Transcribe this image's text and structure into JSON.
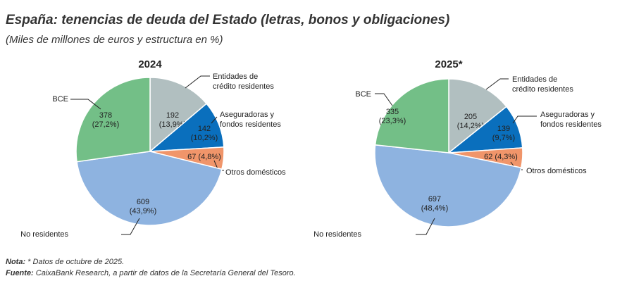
{
  "title": "España: tenencias de deuda del Estado (letras, bonos y obligaciones)",
  "subtitle": "(Miles de millones de euros y estructura en %)",
  "note_label": "Nota:",
  "note_text": " * Datos de octubre de 2025.",
  "source_label": "Fuente:",
  "source_text": " CaixaBank Research, a partir de datos de la Secretaría General del Tesoro.",
  "chart_data": [
    {
      "type": "pie",
      "title": "2024",
      "slices": [
        {
          "label": "Entidades de crédito residentes",
          "value": 192,
          "pct": "13,9%",
          "color": "#b1bfc0"
        },
        {
          "label": "Aseguradoras y fondos residentes",
          "value": 142,
          "pct": "10,2%",
          "color": "#0a6fbd"
        },
        {
          "label": "Otros domésticos",
          "value": 67,
          "pct": "4,8%",
          "color": "#f0956a"
        },
        {
          "label": "No residentes",
          "value": 609,
          "pct": "43,9%",
          "color": "#8eb3e0"
        },
        {
          "label": "BCE",
          "value": 378,
          "pct": "27,2%",
          "color": "#73bf87"
        }
      ]
    },
    {
      "type": "pie",
      "title": "2025*",
      "slices": [
        {
          "label": "Entidades de crédito residentes",
          "value": 205,
          "pct": "14,2%",
          "color": "#b1bfc0"
        },
        {
          "label": "Aseguradoras y fondos residentes",
          "value": 139,
          "pct": "9,7%",
          "color": "#0a6fbd"
        },
        {
          "label": "Otros domésticos",
          "value": 62,
          "pct": "4,3%",
          "color": "#f0956a"
        },
        {
          "label": "No residentes",
          "value": 697,
          "pct": "48,4%",
          "color": "#8eb3e0"
        },
        {
          "label": "BCE",
          "value": 335,
          "pct": "23,3%",
          "color": "#73bf87"
        }
      ]
    }
  ]
}
